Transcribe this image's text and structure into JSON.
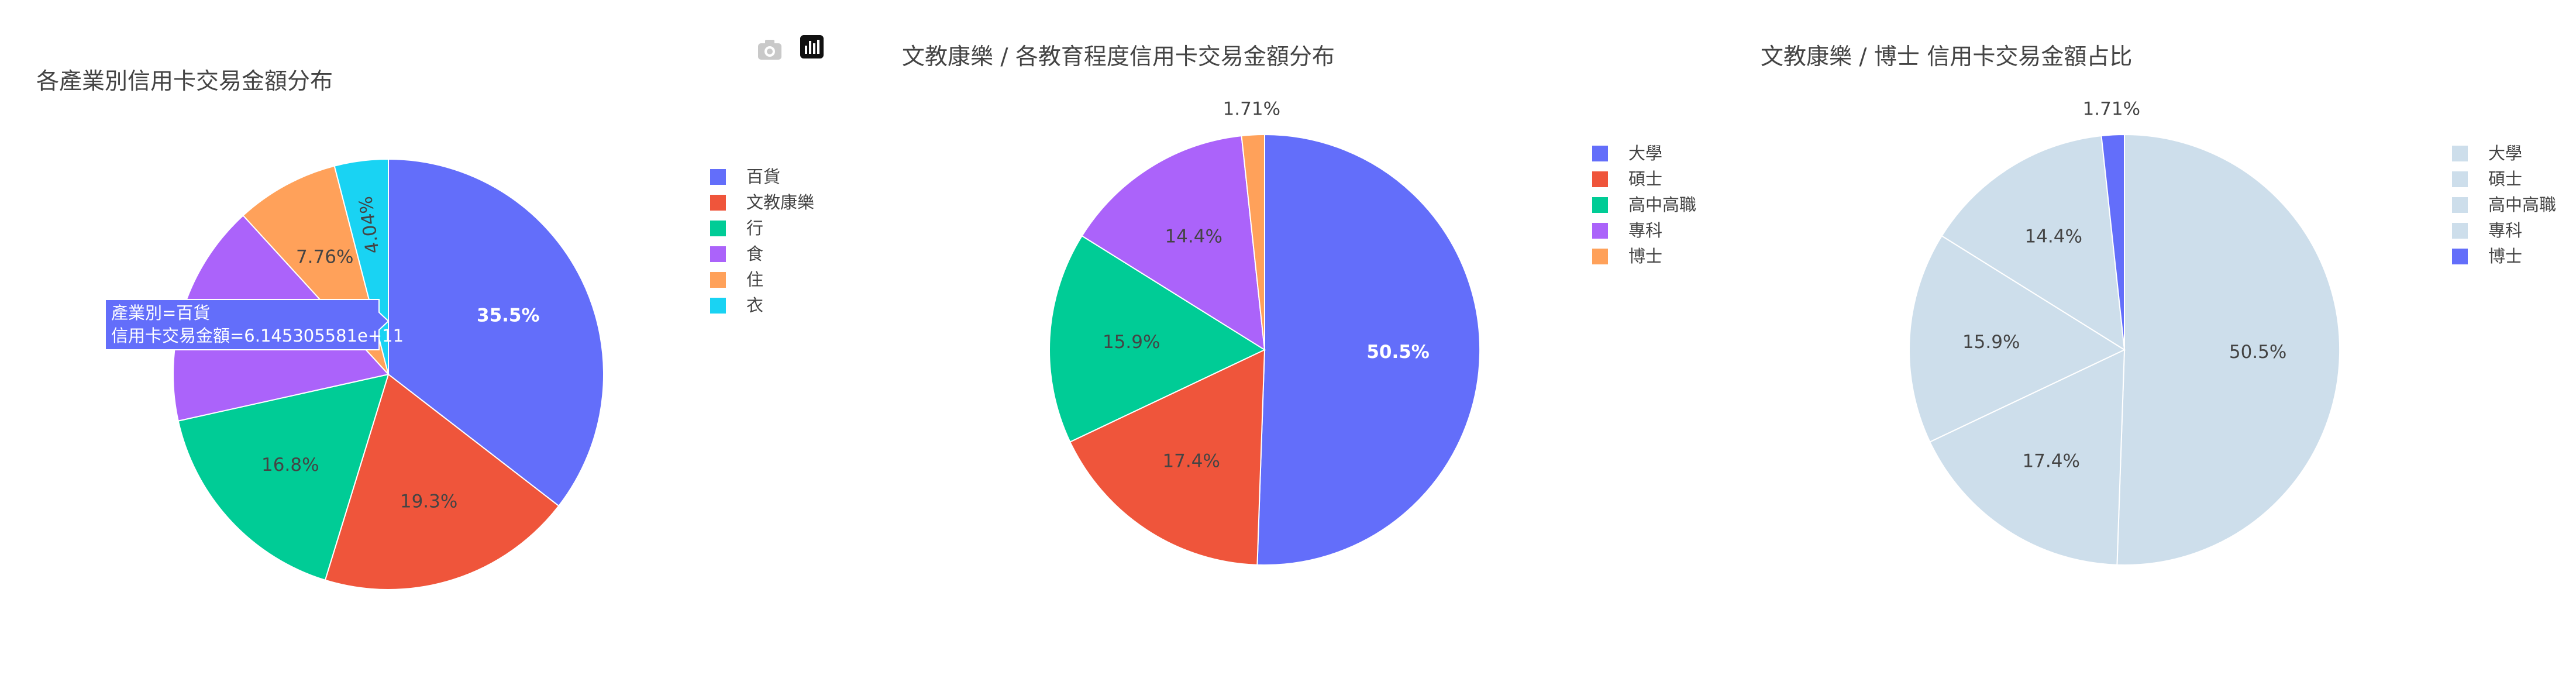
{
  "modebar": {
    "download_icon": "camera-icon",
    "logo_icon": "plotly-logo-icon"
  },
  "chart_data": [
    {
      "type": "pie",
      "title": "各產業別信用卡交易金額分布",
      "labels": [
        "百貨",
        "文教康樂",
        "行",
        "食",
        "住",
        "衣"
      ],
      "values": [
        35.5,
        19.3,
        16.8,
        16.7,
        7.76,
        4.04
      ],
      "value_labels": [
        "35.5%",
        "19.3%",
        "16.8%",
        "16.7%",
        "7.76%",
        "4.04%"
      ],
      "colors": [
        "#636efa",
        "#EF553B",
        "#00cc96",
        "#ab63fa",
        "#FFA15A",
        "#19d3f3"
      ],
      "legend": [
        "百貨",
        "文教康樂",
        "行",
        "食",
        "住",
        "衣"
      ],
      "legend_position": "right",
      "hover": {
        "line1": "產業別=百貨",
        "line2": "信用卡交易金額=6.145305581e+11"
      }
    },
    {
      "type": "pie",
      "title": "文教康樂 / 各教育程度信用卡交易金額分布",
      "labels": [
        "大學",
        "碩士",
        "高中高職",
        "專科",
        "博士"
      ],
      "values": [
        50.5,
        17.4,
        15.9,
        14.4,
        1.71
      ],
      "value_labels": [
        "50.5%",
        "17.4%",
        "15.9%",
        "14.4%",
        "1.71%"
      ],
      "colors": [
        "#636efa",
        "#EF553B",
        "#00cc96",
        "#ab63fa",
        "#FFA15A"
      ],
      "legend": [
        "大學",
        "碩士",
        "高中高職",
        "專科",
        "博士"
      ],
      "legend_position": "right"
    },
    {
      "type": "pie",
      "title": "文教康樂 / 博士 信用卡交易金額占比",
      "labels": [
        "大學",
        "碩士",
        "高中高職",
        "專科",
        "博士"
      ],
      "values": [
        50.5,
        17.4,
        15.9,
        14.4,
        1.71
      ],
      "value_labels": [
        "50.5%",
        "17.4%",
        "15.9%",
        "14.4%",
        "1.71%"
      ],
      "colors": [
        "#cddeeb",
        "#cddeeb",
        "#cddeeb",
        "#cddeeb",
        "#636efa"
      ],
      "legend": [
        "大學",
        "碩士",
        "高中高職",
        "專科",
        "博士"
      ],
      "legend_position": "right"
    }
  ]
}
